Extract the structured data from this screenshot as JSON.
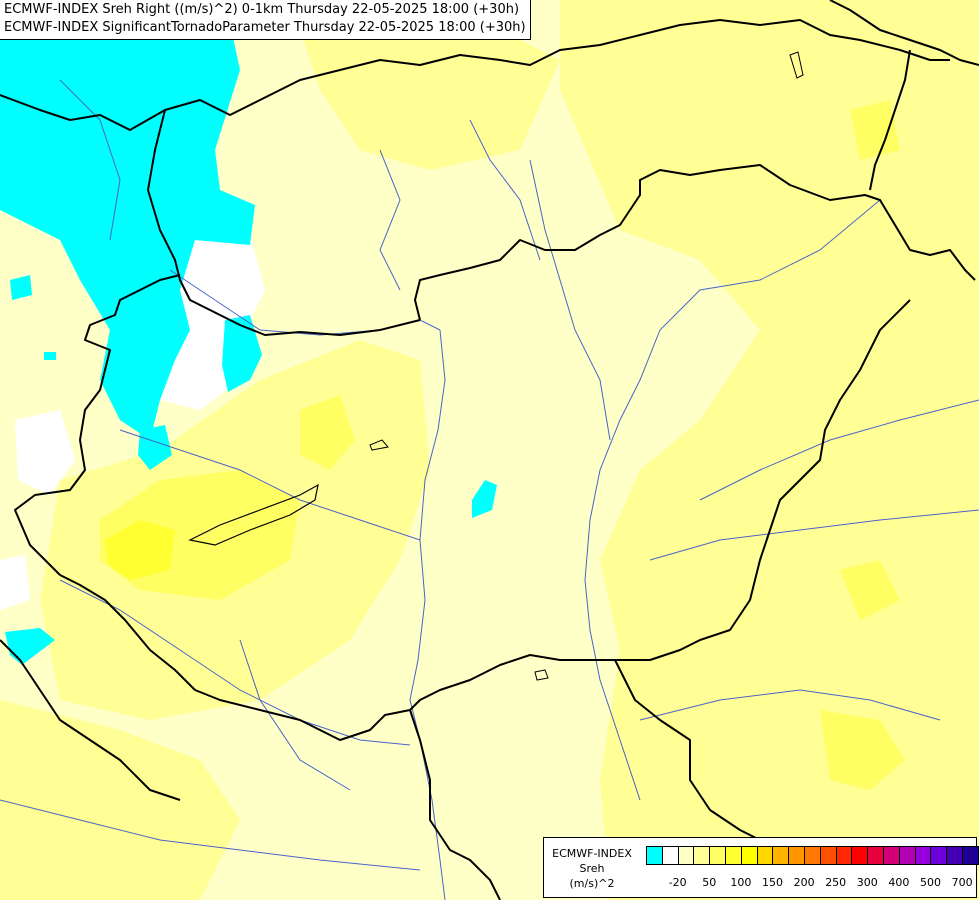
{
  "title": {
    "line1": "ECMWF-INDEX Sreh Right ((m/s)^2) 0-1km Thursday 22-05-2025 18:00 (+30h)",
    "line2": "ECMWF-INDEX SignificantTornadoParameter Thursday 22-05-2025 18:00 (+30h)"
  },
  "legend": {
    "source": "ECMWF-INDEX",
    "variable": "Sreh",
    "unit": "(m/s)^2",
    "tick_labels": [
      "-20",
      "50",
      "100",
      "150",
      "200",
      "250",
      "300",
      "400",
      "500",
      "700"
    ],
    "colors": [
      "#00ffff",
      "#ffffff",
      "#ffffc8",
      "#ffff96",
      "#ffff64",
      "#ffff32",
      "#ffff00",
      "#ffd700",
      "#ffb400",
      "#ff9600",
      "#ff7800",
      "#ff5000",
      "#ff2800",
      "#ff0000",
      "#e6003c",
      "#d20078",
      "#b400b4",
      "#9600dc",
      "#6e00dc",
      "#4600b4",
      "#1e0096",
      "#000078"
    ]
  },
  "map": {
    "field_colors": {
      "cyan": "#00ffff",
      "white": "#ffffff",
      "pale_yellow": "#ffffc8",
      "light_yellow": "#ffff96",
      "yellow": "#ffff64",
      "strong_yellow": "#ffff00",
      "border": "#000000",
      "river": "#4a64c8"
    }
  }
}
